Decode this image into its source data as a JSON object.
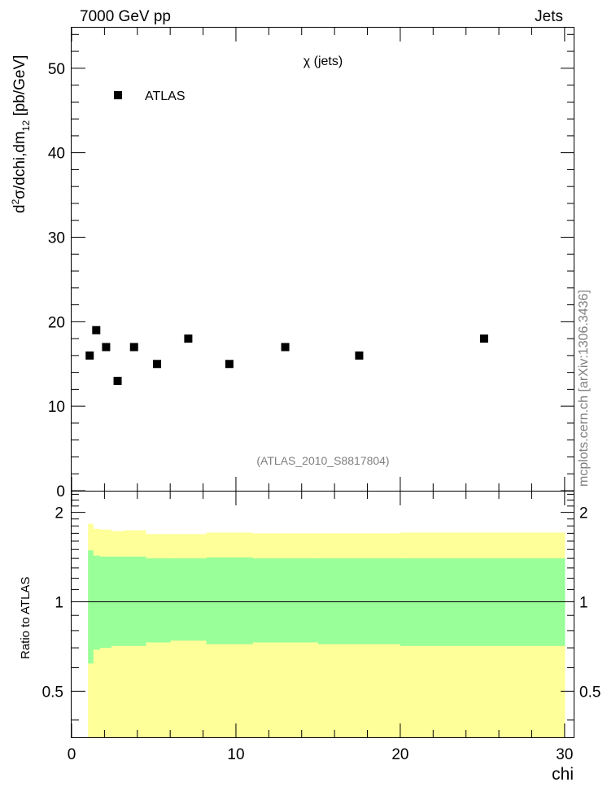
{
  "header": {
    "left": "7000 GeV pp",
    "right": "Jets"
  },
  "side_label": "mcplots.cern.ch [arXiv:1306.3436]",
  "colors": {
    "yellow": "#ffff99",
    "green": "#99ff99",
    "marker": "#000000",
    "analysis_label": "#7f7f7f"
  },
  "chart_data": [
    {
      "type": "scatter",
      "panel": "main",
      "title": "χ (jets)",
      "ylabel": "d²σ/dchi,dm₁₂ [pb/GeV]",
      "ylabel_parts": {
        "d": "d",
        "exp": "2",
        "rest": "σ/dchi,dm",
        "sub": "12",
        "unit": " [pb/GeV]"
      },
      "analysis": "(ATLAS_2010_S8817804)",
      "ylim": [
        0,
        54.8
      ],
      "yticks": [
        0,
        10,
        20,
        30,
        40,
        50
      ],
      "ytick_labels": [
        "0",
        "10",
        "20",
        "30",
        "40",
        "50"
      ],
      "legend": "ATLAS",
      "legend_position": "top-left",
      "series": [
        {
          "name": "ATLAS",
          "x": [
            1.1,
            1.5,
            2.1,
            2.8,
            3.8,
            5.2,
            7.1,
            9.6,
            13.0,
            17.5,
            25.1
          ],
          "y": [
            16,
            19,
            17,
            13,
            17,
            15,
            18,
            15,
            17,
            16,
            18
          ]
        }
      ]
    },
    {
      "type": "area",
      "panel": "ratio",
      "ylabel": "Ratio to ATLAS",
      "ylim": [
        0.35,
        2.35
      ],
      "yticks": [
        0.5,
        1,
        2
      ],
      "ytick_labels": [
        "0.5",
        "1",
        "2"
      ],
      "xlim": [
        0,
        30.6
      ],
      "xticks": [
        0,
        10,
        20,
        30
      ],
      "xtick_labels": [
        "0",
        "10",
        "20",
        "30"
      ],
      "xlabel": "chi",
      "reference_line": 1,
      "bins": [
        1.0,
        1.3,
        1.7,
        2.4,
        3.2,
        4.5,
        6.0,
        8.2,
        11.0,
        15.0,
        20.0,
        30.0
      ],
      "bands": [
        {
          "name": "yellow",
          "upper": [
            1.83,
            1.76,
            1.75,
            1.73,
            1.74,
            1.69,
            1.69,
            1.71,
            1.7,
            1.7,
            1.71
          ],
          "lower": [
            0.0,
            0.0,
            0.0,
            0.0,
            0.0,
            0.0,
            0.0,
            0.0,
            0.0,
            0.0,
            0.0
          ]
        },
        {
          "name": "green",
          "upper": [
            1.49,
            1.43,
            1.42,
            1.42,
            1.42,
            1.4,
            1.4,
            1.41,
            1.4,
            1.4,
            1.4
          ],
          "lower": [
            0.62,
            0.69,
            0.7,
            0.71,
            0.71,
            0.73,
            0.74,
            0.72,
            0.73,
            0.72,
            0.71
          ]
        }
      ]
    }
  ]
}
